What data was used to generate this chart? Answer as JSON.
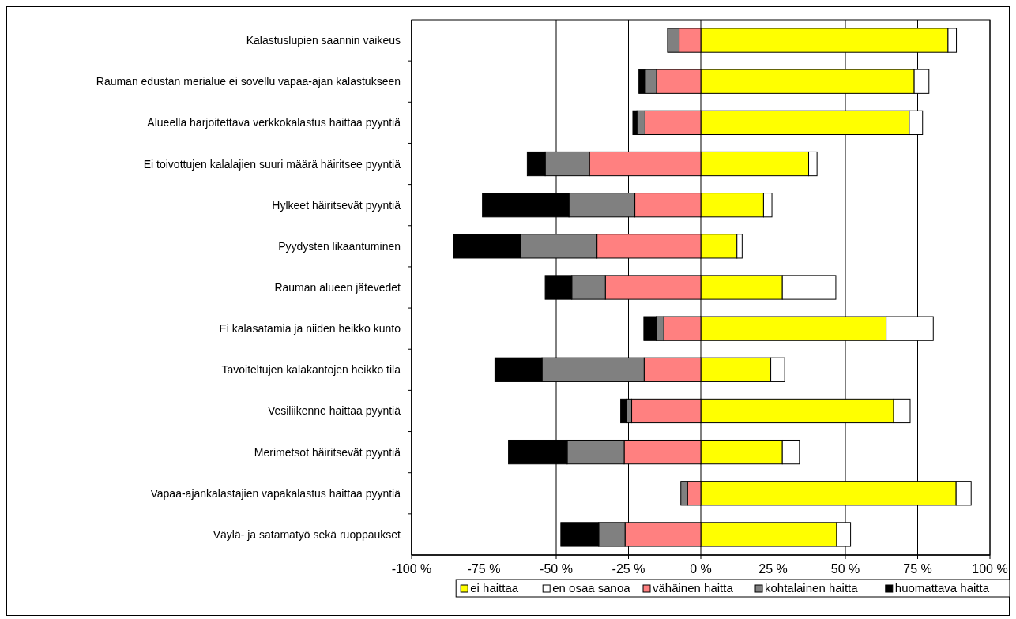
{
  "chart_data": {
    "type": "bar",
    "orientation": "horizontal",
    "stacked": true,
    "categories": [
      "Kalastuslupien saannin vaikeus",
      "Rauman edustan merialue ei sovellu vapaa-ajan kalastukseen",
      "Alueella harjoitettava verkkokalastus haittaa pyyntiä",
      "Ei toivottujen kalalajien suuri määrä häiritsee pyyntiä",
      "Hylkeet häiritsevät pyyntiä",
      "Pyydysten likaantuminen",
      "Rauman alueen jätevedet",
      "Ei kalasatamia ja niiden heikko kunto",
      "Tavoiteltujen kalakantojen heikko tila",
      "Vesiliikenne haittaa pyyntiä",
      "Merimetsot häiritsevät pyyntiä",
      "Vapaa-ajankalastajien vapakalastus haittaa pyyntiä",
      "Väylä- ja satamatyö sekä ruoppaukset"
    ],
    "series": [
      {
        "name": "ei haittaa",
        "color": "#ffff00",
        "values": [
          85.5,
          73.8,
          72.1,
          37.3,
          21.7,
          12.5,
          28.2,
          64.1,
          24.2,
          66.7,
          28.2,
          88.3,
          47.0
        ]
      },
      {
        "name": "en osaa sanoa",
        "color": "#ffffff",
        "values": [
          2.9,
          5.1,
          4.6,
          2.9,
          2.9,
          1.8,
          18.5,
          16.3,
          4.8,
          5.7,
          5.9,
          5.2,
          4.8
        ]
      },
      {
        "name": "vähäinen haitta",
        "color": "#ff8080",
        "values": [
          -7.5,
          -15.3,
          -19.3,
          -38.5,
          -22.8,
          -35.9,
          -33.0,
          -12.8,
          -19.6,
          -23.9,
          -26.5,
          -4.6,
          -26.2
        ]
      },
      {
        "name": "kohtalainen haitta",
        "color": "#808080",
        "values": [
          -4.0,
          -3.9,
          -2.8,
          -15.3,
          -22.8,
          -26.3,
          -11.6,
          -2.6,
          -35.3,
          -1.8,
          -19.7,
          -2.3,
          -9.1
        ]
      },
      {
        "name": "huomattava haitta",
        "color": "#000000",
        "values": [
          0,
          -2.2,
          -1.4,
          -6.2,
          -29.9,
          -23.4,
          -9.2,
          -4.3,
          -16.3,
          -2.0,
          -20.3,
          0,
          -13.1
        ]
      }
    ],
    "xlim": [
      -100,
      100
    ],
    "xticks": [
      {
        "value": -100,
        "label": "-100 %"
      },
      {
        "value": -75,
        "label": "-75 %"
      },
      {
        "value": -50,
        "label": "-50 %"
      },
      {
        "value": -25,
        "label": "-25 %"
      },
      {
        "value": 0,
        "label": "0 %"
      },
      {
        "value": 25,
        "label": "25 %"
      },
      {
        "value": 50,
        "label": "50 %"
      },
      {
        "value": 75,
        "label": "75 %"
      },
      {
        "value": 100,
        "label": "100 %"
      }
    ],
    "grid": "x",
    "legend": "bottom"
  }
}
